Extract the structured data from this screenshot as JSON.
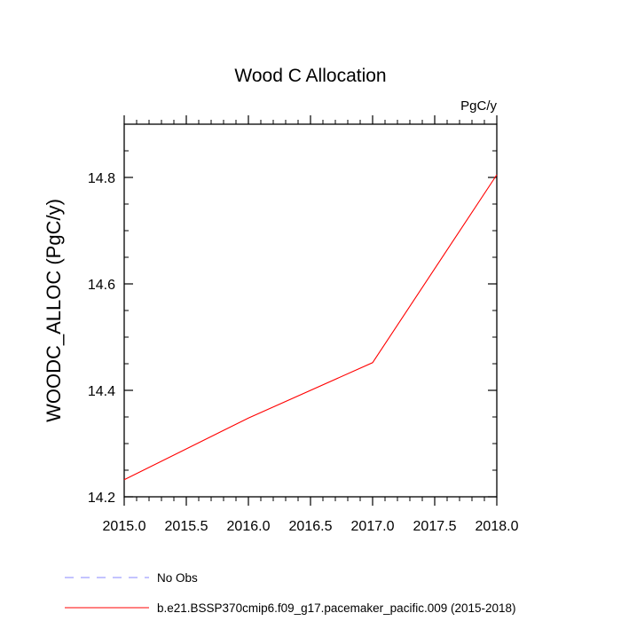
{
  "chart_data": {
    "type": "line",
    "title": "Wood C Allocation",
    "units_label": "PgC/y",
    "ylabel": "WOODC_ALLOC  (PgC/y)",
    "xlabel": "",
    "xlim": [
      2015.0,
      2018.0
    ],
    "ylim": [
      14.2,
      14.9
    ],
    "xticks": [
      2015.0,
      2015.5,
      2016.0,
      2016.5,
      2017.0,
      2017.5,
      2018.0
    ],
    "xtick_labels": [
      "2015.0",
      "2015.5",
      "2016.0",
      "2016.5",
      "2017.0",
      "2017.5",
      "2018.0"
    ],
    "yticks": [
      14.2,
      14.4,
      14.6,
      14.8
    ],
    "ytick_labels": [
      "14.2",
      "14.4",
      "14.6",
      "14.8"
    ],
    "grid": false,
    "legend_position": "bottom",
    "series": [
      {
        "name": "b.e21.BSSP370cmip6.f09_g17.pacemaker_pacific.009 (2015-2018)",
        "color": "#ff0000",
        "dash": "solid",
        "x": [
          2015,
          2016,
          2017,
          2018
        ],
        "y": [
          14.232,
          14.348,
          14.452,
          14.805
        ]
      }
    ],
    "legend": [
      {
        "label": "No Obs",
        "color": "#8a8aff",
        "dash": "dashed"
      },
      {
        "label": "b.e21.BSSP370cmip6.f09_g17.pacemaker_pacific.009 (2015-2018)",
        "color": "#ff0000",
        "dash": "solid"
      }
    ]
  }
}
